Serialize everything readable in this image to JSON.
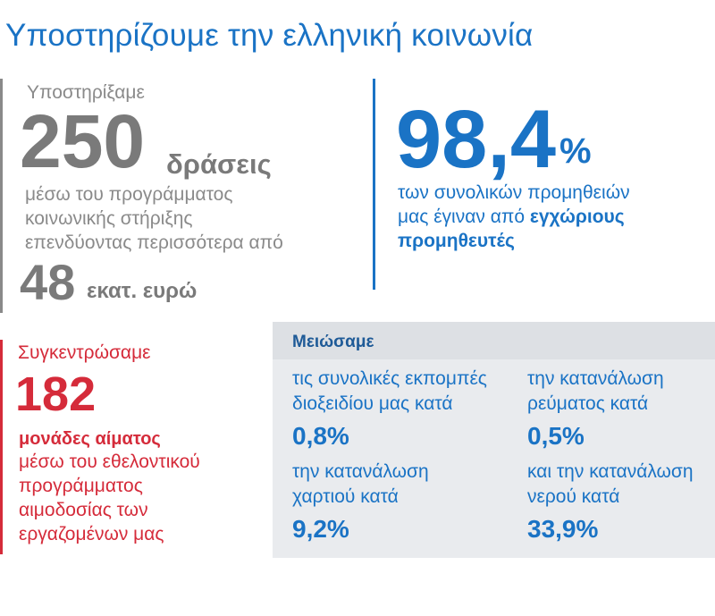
{
  "title": "Υποστηρίζουμε την ελληνική κοινωνία",
  "colors": {
    "blue": "#1a73c5",
    "red": "#d52b3a",
    "gray": "#7a7a7a",
    "panel_bg": "#e9ebee"
  },
  "support": {
    "intro": "Υποστηρίξαμε",
    "count": "250",
    "count_unit": "δράσεις",
    "description_lines": [
      "μέσω του προγράμματος",
      "κοινωνικής στήριξης",
      "επενδύοντας περισσότερα από"
    ],
    "amount": "48",
    "amount_unit": "εκατ. ευρώ"
  },
  "suppliers": {
    "value": "98,4",
    "percent": "%",
    "line1": "των συνολικών προμηθειών",
    "line2_prefix": "μας έγιναν από",
    "line2_bold": "εγχώριους",
    "line3_bold": "προμηθευτές"
  },
  "blood": {
    "intro": "Συγκεντρώσαμε",
    "count": "182",
    "unit": "μονάδες αίματος",
    "description_lines": [
      "μέσω του εθελοντικού",
      "προγράμματος",
      "αιμοδοσίας των",
      "εργαζομένων μας"
    ]
  },
  "reductions": {
    "heading": "Μειώσαμε",
    "items": [
      {
        "line1": "τις συνολικές εκπομπές",
        "line2": "διοξειδίου μας κατά",
        "value": "0,8%"
      },
      {
        "line1": "την κατανάλωση",
        "line2": "ρεύματος κατά",
        "value": "0,5%"
      },
      {
        "line1": "την κατανάλωση",
        "line2": "χαρτιού κατά",
        "value": "9,2%"
      },
      {
        "line1": "και την κατανάλωση",
        "line2": "νερού κατά",
        "value": "33,9%"
      }
    ]
  }
}
